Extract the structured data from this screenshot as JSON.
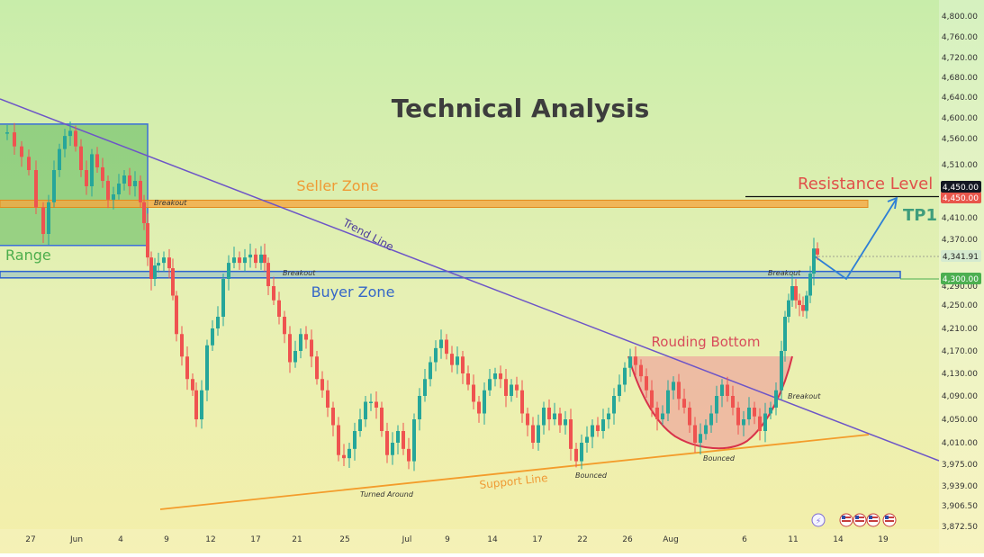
{
  "chart_data": {
    "type": "candlestick",
    "title": "Technical Analysis",
    "y_axis": {
      "ticks": [
        4800,
        4760,
        4720,
        4680,
        4640,
        4600,
        4560,
        4510,
        4450,
        4410,
        4370,
        4341.91,
        4300,
        4290,
        4250,
        4210,
        4170,
        4130,
        4090,
        4050,
        4010,
        3975,
        3939,
        3906.5,
        3872.5
      ],
      "tick_labels": [
        "4,800.00",
        "4,760.00",
        "4,720.00",
        "4,680.00",
        "4,640.00",
        "4,600.00",
        "4,560.00",
        "4,510.00",
        "4,450.00",
        "4,410.00",
        "4,370.00",
        "4,341.91",
        "4,300.00",
        "4,290.00",
        "4,250.00",
        "4,210.00",
        "4,170.00",
        "4,130.00",
        "4,090.00",
        "4,050.00",
        "4,010.00",
        "3,975.00",
        "3,939.00",
        "3,906.50",
        "3,872.50"
      ],
      "price_badges": [
        {
          "label": "4,450.00",
          "price": 4450,
          "color": "#e8564b",
          "style": "red"
        },
        {
          "label": "4,450.00",
          "price": 4452,
          "color": "#131722",
          "style": "dark"
        },
        {
          "label": "4,341.91",
          "price": 4341.91,
          "color": "#d5ead0",
          "style": "light"
        },
        {
          "label": "4,300.00",
          "price": 4300,
          "color": "#4caf50",
          "style": "green"
        }
      ]
    },
    "x_axis": {
      "tick_labels": [
        "27",
        "Jun",
        "4",
        "9",
        "12",
        "17",
        "21",
        "25",
        "Jul",
        "9",
        "14",
        "17",
        "22",
        "26",
        "Aug",
        "6",
        "11",
        "14",
        "19"
      ]
    },
    "annotations": {
      "seller_zone": "Seller Zone",
      "buyer_zone": "Buyer Zone",
      "range": "Range",
      "trend_line": "Trend Line",
      "support_line": "Support Line",
      "resistance_level": "Resistance Level",
      "tp1": "TP1",
      "rounding_bottom": "Rouding Bottom",
      "breakout_1": "Breakout",
      "breakout_2": "Breakout",
      "breakout_3": "Breakout",
      "breakout_4": "Breakout",
      "turned_around": "Turned Around",
      "bounced_1": "Bounced",
      "bounced_2": "Bounced"
    },
    "levels": {
      "seller_zone": [
        4430,
        4444
      ],
      "buyer_zone": [
        4302,
        4314
      ],
      "resistance": 4450,
      "support_target": 4300
    },
    "colors": {
      "up": "#26a69a",
      "down": "#ef5350",
      "trend_line": "#6d55c7",
      "support_line": "#f39c2b",
      "seller_zone": "#f5a742",
      "buyer_zone": "#5b9bd5",
      "range_box": "#5cb85c",
      "rounding_fill": "#ef9a9a",
      "projection": "#2e7fd6"
    }
  }
}
